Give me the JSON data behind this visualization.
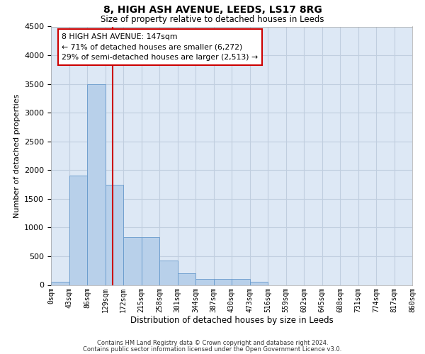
{
  "title1": "8, HIGH ASH AVENUE, LEEDS, LS17 8RG",
  "title2": "Size of property relative to detached houses in Leeds",
  "xlabel": "Distribution of detached houses by size in Leeds",
  "ylabel": "Number of detached properties",
  "footnote1": "Contains HM Land Registry data © Crown copyright and database right 2024.",
  "footnote2": "Contains public sector information licensed under the Open Government Licence v3.0.",
  "bin_labels": [
    "0sqm",
    "43sqm",
    "86sqm",
    "129sqm",
    "172sqm",
    "215sqm",
    "258sqm",
    "301sqm",
    "344sqm",
    "387sqm",
    "430sqm",
    "473sqm",
    "516sqm",
    "559sqm",
    "602sqm",
    "645sqm",
    "688sqm",
    "731sqm",
    "774sqm",
    "817sqm",
    "860sqm"
  ],
  "bar_values": [
    50,
    1900,
    3500,
    1750,
    830,
    830,
    420,
    200,
    110,
    110,
    110,
    55,
    0,
    0,
    0,
    0,
    0,
    0,
    0,
    0
  ],
  "bar_color": "#b8d0ea",
  "bar_edge_color": "#6699cc",
  "vline_color": "#cc0000",
  "annotation_text": "8 HIGH ASH AVENUE: 147sqm\n← 71% of detached houses are smaller (6,272)\n29% of semi-detached houses are larger (2,513) →",
  "annotation_box_color": "#cc0000",
  "ylim": [
    0,
    4500
  ],
  "yticks": [
    0,
    500,
    1000,
    1500,
    2000,
    2500,
    3000,
    3500,
    4000,
    4500
  ],
  "background_color": "#dde8f5",
  "plot_background": "#ffffff",
  "grid_color": "#c0cedf"
}
